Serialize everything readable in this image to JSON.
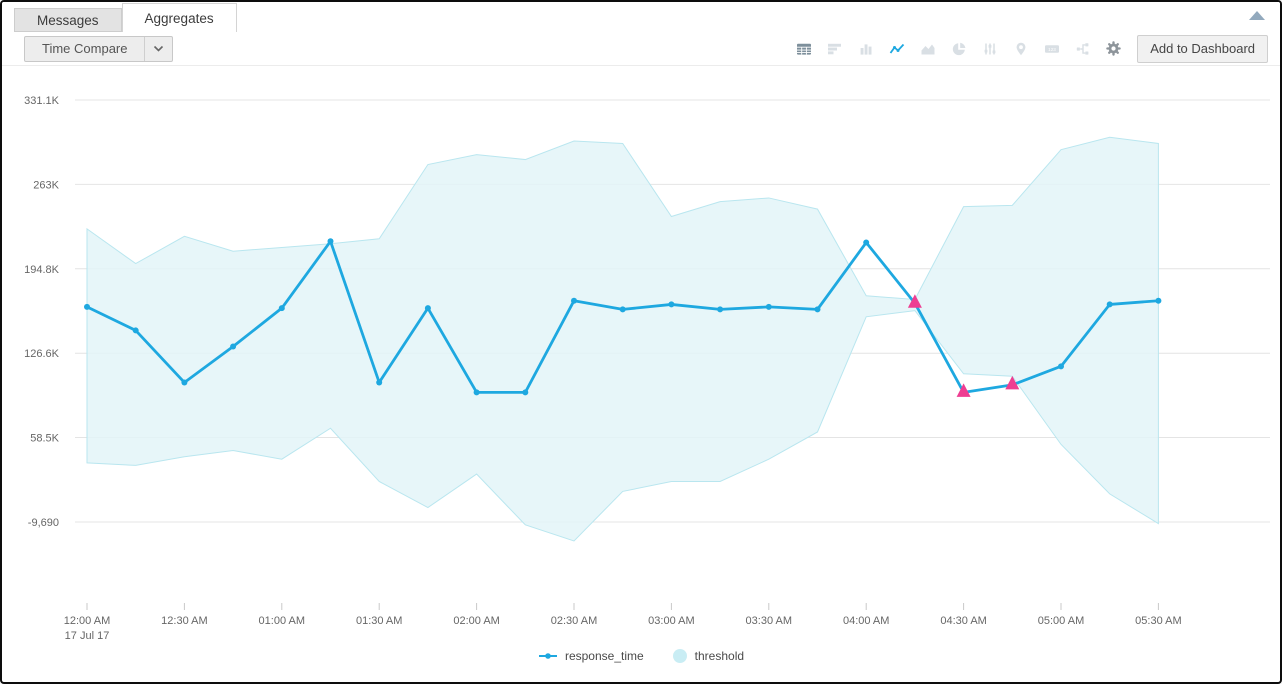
{
  "tabs": [
    {
      "label": "Messages",
      "active": false
    },
    {
      "label": "Aggregates",
      "active": true
    }
  ],
  "toolbar": {
    "time_compare_label": "Time Compare",
    "add_to_dashboard_label": "Add to Dashboard",
    "single_value_glyph": "123",
    "icon_names": [
      "table-icon",
      "bar-chart-icon",
      "column-chart-icon",
      "line-chart-icon",
      "area-chart-icon",
      "pie-chart-icon",
      "sliders-icon",
      "map-pin-icon",
      "single-value-icon",
      "flow-diagram-icon",
      "settings-gear-icon"
    ],
    "active_icon": "line-chart-icon"
  },
  "colors": {
    "accent_blue": "#1ea8e0",
    "band_fill": "#e3f5f8",
    "band_edge": "#b9e6ef",
    "anomaly_pink": "#ee3e92",
    "grid": "#e4e4e4",
    "tick": "#c9c9c9",
    "legend_threshold_dot": "#c9edf4"
  },
  "chart_data": {
    "type": "line",
    "title": "",
    "xlabel": "",
    "ylabel": "",
    "grid": "horizontal",
    "legend_position": "bottom-center",
    "x_date_label": "17 Jul 17",
    "x": [
      "12:00 AM",
      "12:15 AM",
      "12:30 AM",
      "12:45 AM",
      "01:00 AM",
      "01:15 AM",
      "01:30 AM",
      "01:45 AM",
      "02:00 AM",
      "02:15 AM",
      "02:30 AM",
      "02:45 AM",
      "03:00 AM",
      "03:15 AM",
      "03:30 AM",
      "03:45 AM",
      "04:00 AM",
      "04:15 AM",
      "04:30 AM",
      "04:45 AM",
      "05:00 AM",
      "05:15 AM",
      "05:30 AM"
    ],
    "x_tick_labels": [
      "12:00 AM",
      "12:30 AM",
      "01:00 AM",
      "01:30 AM",
      "02:00 AM",
      "02:30 AM",
      "03:00 AM",
      "03:30 AM",
      "04:00 AM",
      "04:30 AM",
      "05:00 AM",
      "05:30 AM"
    ],
    "y_ticks": [
      {
        "label": "331.1K",
        "value": 331100
      },
      {
        "label": "263K",
        "value": 263000
      },
      {
        "label": "194.8K",
        "value": 194800
      },
      {
        "label": "126.6K",
        "value": 126600
      },
      {
        "label": "58.5K",
        "value": 58500
      },
      {
        "label": "-9,690",
        "value": -9690
      }
    ],
    "ylim": [
      -60000,
      340000
    ],
    "series": [
      {
        "name": "response_time",
        "type": "line",
        "values": [
          164000,
          145000,
          103000,
          132000,
          163000,
          217000,
          103000,
          163000,
          95000,
          95000,
          169000,
          162000,
          166000,
          162000,
          164000,
          162000,
          216000,
          167000,
          95000,
          101000,
          116000,
          166000,
          169000
        ]
      },
      {
        "name": "threshold",
        "type": "band",
        "upper": [
          227000,
          199000,
          221000,
          209000,
          212000,
          215000,
          219000,
          279000,
          287000,
          283000,
          298000,
          296000,
          237000,
          249000,
          252000,
          243000,
          173000,
          170000,
          245000,
          246000,
          291000,
          301000,
          296000
        ],
        "lower": [
          38000,
          36000,
          43000,
          48000,
          41000,
          66000,
          23000,
          2000,
          29000,
          -12000,
          -25000,
          15000,
          23000,
          23000,
          41000,
          63000,
          156000,
          161000,
          110000,
          108000,
          53000,
          13000,
          -11000
        ]
      }
    ],
    "anomaly_indices": [
      17,
      18,
      19
    ],
    "legend": [
      "response_time",
      "threshold"
    ]
  }
}
